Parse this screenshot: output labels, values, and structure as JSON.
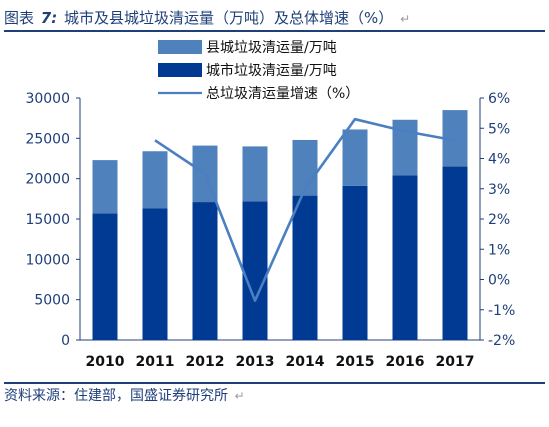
{
  "figure": {
    "label": "图表",
    "number": "7:",
    "title": "城市及县城垃圾清运量（万吨）及总体增速（%）",
    "return_mark": "↵",
    "source": "资料来源：住建部，国盛证券研究所"
  },
  "chart_data": {
    "type": "bar",
    "stacked": true,
    "categories": [
      "2010",
      "2011",
      "2012",
      "2013",
      "2014",
      "2015",
      "2016",
      "2017"
    ],
    "series": [
      {
        "name": "城市垃圾清运量/万吨",
        "type": "bar",
        "axis": "left",
        "color": "#003a92",
        "values": [
          15700,
          16300,
          17100,
          17200,
          17900,
          19100,
          20400,
          21500
        ]
      },
      {
        "name": "县城垃圾清运量/万吨",
        "type": "bar",
        "axis": "left",
        "color": "#4f81bd",
        "values": [
          6600,
          7100,
          7000,
          6800,
          6900,
          7000,
          6900,
          7000
        ]
      },
      {
        "name": "总垃圾清运量增速（%）",
        "type": "line",
        "axis": "right",
        "color": "#4a7fc1",
        "x": [
          "2011",
          "2012",
          "2013",
          "2014",
          "2015",
          "2016",
          "2017"
        ],
        "values": [
          4.6,
          3.5,
          -0.7,
          3.0,
          5.3,
          4.9,
          4.6
        ]
      }
    ],
    "ylim_left": [
      0,
      30000
    ],
    "yticks_left": [
      "0",
      "5000",
      "10000",
      "15000",
      "20000",
      "25000",
      "30000"
    ],
    "ylim_right": [
      -2,
      6
    ],
    "yticks_right": [
      "-2%",
      "-1%",
      "0%",
      "1%",
      "2%",
      "3%",
      "4%",
      "5%",
      "6%"
    ],
    "legend_position": "top-center",
    "legend_order": [
      "县城垃圾清运量/万吨",
      "城市垃圾清运量/万吨",
      "总垃圾清运量增速（%）"
    ],
    "grid": false
  }
}
